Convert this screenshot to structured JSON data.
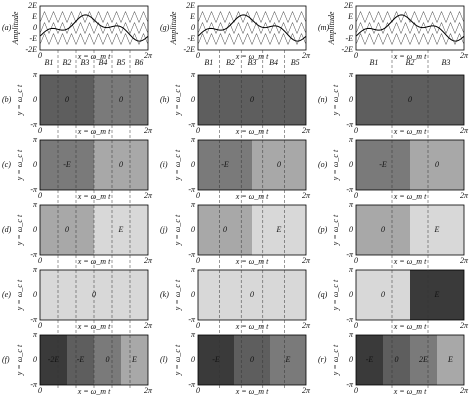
{
  "axes": {
    "amplitude_label": "Amplitude",
    "amplitude_ticks": [
      "2E",
      "E",
      "0",
      "-E",
      "-2E"
    ],
    "contour_ylabel": "y = ω_c t",
    "contour_yticks": [
      "π",
      "0",
      "-π"
    ],
    "xlabel": "x = ω_m t",
    "xticks": [
      "0",
      "2π"
    ]
  },
  "columns": [
    {
      "b_labels": [
        "B1",
        "B2",
        "B3",
        "B4",
        "B5",
        "B6"
      ],
      "panels": [
        {
          "label": "(a)",
          "regions": []
        },
        {
          "label": "(b)",
          "regions": [
            "0",
            "0"
          ]
        },
        {
          "label": "(c)",
          "regions": [
            "-E",
            "0"
          ]
        },
        {
          "label": "(d)",
          "regions": [
            "0",
            "E"
          ]
        },
        {
          "label": "(e)",
          "regions": [
            "0"
          ]
        },
        {
          "label": "(f)",
          "regions": [
            "-2E",
            "-E",
            "0",
            "E"
          ]
        }
      ]
    },
    {
      "b_labels": [
        "B1",
        "B2",
        "B3",
        "B4",
        "B5"
      ],
      "panels": [
        {
          "label": "(g)",
          "regions": []
        },
        {
          "label": "(h)",
          "regions": [
            "0"
          ]
        },
        {
          "label": "(i)",
          "regions": [
            "-E",
            "0"
          ]
        },
        {
          "label": "(j)",
          "regions": [
            "0",
            "E"
          ]
        },
        {
          "label": "(k)",
          "regions": [
            "0"
          ]
        },
        {
          "label": "(l)",
          "regions": [
            "-E",
            "0",
            "E"
          ]
        }
      ]
    },
    {
      "b_labels": [
        "B1",
        "B2",
        "B3"
      ],
      "panels": [
        {
          "label": "(m)",
          "regions": []
        },
        {
          "label": "(n)",
          "regions": [
            "0"
          ]
        },
        {
          "label": "(o)",
          "regions": [
            "-E",
            "0"
          ]
        },
        {
          "label": "(p)",
          "regions": [
            "0",
            "E"
          ]
        },
        {
          "label": "(q)",
          "regions": [
            "0",
            "E"
          ]
        },
        {
          "label": "(r)",
          "regions": [
            "-E",
            "0",
            "2E",
            "E"
          ]
        }
      ]
    }
  ]
}
